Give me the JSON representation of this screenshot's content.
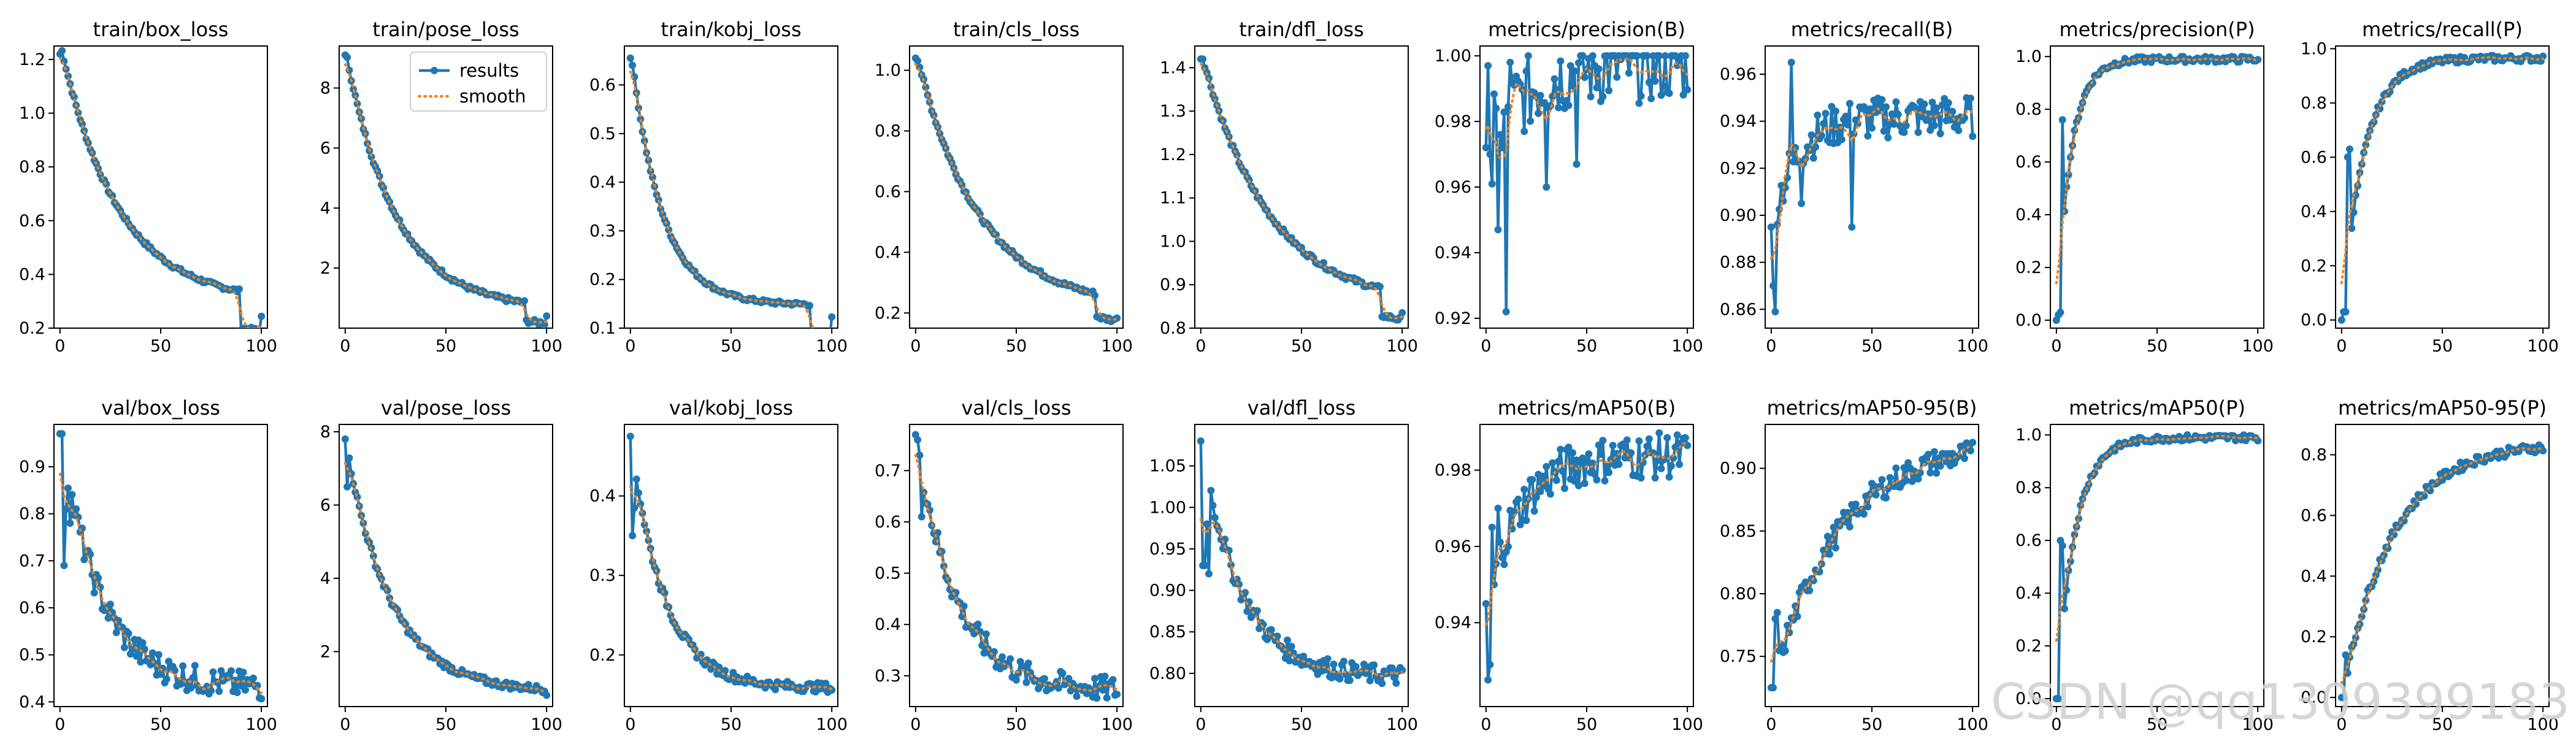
{
  "colors": {
    "results": "#1f77b4",
    "smooth": "#ff7f0e",
    "axis": "#000000"
  },
  "legend": {
    "entries": [
      "results",
      "smooth"
    ],
    "placement": "upper-right",
    "panel": 1
  },
  "watermark": "CSDN @qq1309399183",
  "chart_data": [
    {
      "type": "line",
      "title": "train/box_loss",
      "xlim": [
        -3,
        103
      ],
      "ylim": [
        0.2,
        1.25
      ],
      "xticks": [
        0,
        50,
        100
      ],
      "yticks": [
        0.2,
        0.4,
        0.6,
        0.8,
        1.0,
        1.2
      ],
      "xticklabels": [
        "0",
        "50",
        "100"
      ],
      "yticklabels": [
        "0.2",
        "0.4",
        "0.6",
        "0.8",
        "1.0",
        "1.2"
      ],
      "start": 1.22,
      "end": 0.25,
      "shape": "curve",
      "k": 3.5,
      "drop": 0.09,
      "noise": 0.008
    },
    {
      "type": "line",
      "title": "train/pose_loss",
      "xlim": [
        -3,
        103
      ],
      "ylim": [
        0,
        9.4
      ],
      "xticks": [
        0,
        50,
        100
      ],
      "yticks": [
        2,
        4,
        6,
        8
      ],
      "xticklabels": [
        "0",
        "50",
        "100"
      ],
      "yticklabels": [
        "2",
        "4",
        "6",
        "8"
      ],
      "start": 9.1,
      "end": 0.4,
      "shape": "curve",
      "k": 4.0,
      "drop": 0.4,
      "noise": 0.08
    },
    {
      "type": "line",
      "title": "train/kobj_loss",
      "xlim": [
        -3,
        103
      ],
      "ylim": [
        0.1,
        0.68
      ],
      "xticks": [
        0,
        50,
        100
      ],
      "yticks": [
        0.1,
        0.2,
        0.3,
        0.4,
        0.5,
        0.6
      ],
      "xticklabels": [
        "0",
        "50",
        "100"
      ],
      "yticklabels": [
        "0.1",
        "0.2",
        "0.3",
        "0.4",
        "0.5",
        "0.6"
      ],
      "start": 0.655,
      "end": 0.125,
      "shape": "curve",
      "k": 6.5,
      "drop": 0.045,
      "noise": 0.004
    },
    {
      "type": "line",
      "title": "train/cls_loss",
      "xlim": [
        -3,
        103
      ],
      "ylim": [
        0.15,
        1.08
      ],
      "xticks": [
        0,
        50,
        100
      ],
      "yticks": [
        0.2,
        0.4,
        0.6,
        0.8,
        1.0
      ],
      "xticklabels": [
        "0",
        "50",
        "100"
      ],
      "yticklabels": [
        "0.2",
        "0.4",
        "0.6",
        "0.8",
        "1.0"
      ],
      "start": 1.04,
      "end": 0.19,
      "shape": "curve",
      "k": 3.2,
      "drop": 0.05,
      "noise": 0.008
    },
    {
      "type": "line",
      "title": "train/dfl_loss",
      "xlim": [
        -3,
        103
      ],
      "ylim": [
        0.8,
        1.45
      ],
      "xticks": [
        0,
        50,
        100
      ],
      "yticks": [
        0.8,
        0.9,
        1.0,
        1.1,
        1.2,
        1.3,
        1.4
      ],
      "xticklabels": [
        "0",
        "50",
        "100"
      ],
      "yticklabels": [
        "0.8",
        "0.9",
        "1.0",
        "1.1",
        "1.2",
        "1.3",
        "1.4"
      ],
      "start": 1.42,
      "end": 0.83,
      "shape": "curve",
      "k": 3.0,
      "drop": 0.04,
      "noise": 0.006
    },
    {
      "type": "line",
      "title": "metrics/precision(B)",
      "xlim": [
        -3,
        103
      ],
      "ylim": [
        0.917,
        1.003
      ],
      "xticks": [
        0,
        50,
        100
      ],
      "yticks": [
        0.92,
        0.94,
        0.96,
        0.98,
        1.0
      ],
      "xticklabels": [
        "0",
        "50",
        "100"
      ],
      "yticklabels": [
        "0.92",
        "0.94",
        "0.96",
        "0.98",
        "1.00"
      ],
      "start": 0.972,
      "end": 0.998,
      "shape": "rise",
      "k": 5.0,
      "noise": 0.012,
      "cap": 1.0,
      "spikes": [
        [
          1,
          0.997
        ],
        [
          3,
          0.961
        ],
        [
          6,
          0.947
        ],
        [
          8,
          0.972
        ],
        [
          10,
          0.922
        ],
        [
          12,
          0.998
        ],
        [
          30,
          0.96
        ],
        [
          45,
          0.967
        ]
      ]
    },
    {
      "type": "line",
      "title": "metrics/recall(B)",
      "xlim": [
        -3,
        103
      ],
      "ylim": [
        0.852,
        0.972
      ],
      "xticks": [
        0,
        50,
        100
      ],
      "yticks": [
        0.86,
        0.88,
        0.9,
        0.92,
        0.94,
        0.96
      ],
      "xticklabels": [
        "0",
        "50",
        "100"
      ],
      "yticklabels": [
        "0.86",
        "0.88",
        "0.90",
        "0.92",
        "0.94",
        "0.96"
      ],
      "start": 0.895,
      "end": 0.942,
      "shape": "rise",
      "k": 8.0,
      "noise": 0.009,
      "spikes": [
        [
          1,
          0.87
        ],
        [
          2,
          0.859
        ],
        [
          10,
          0.965
        ],
        [
          15,
          0.905
        ],
        [
          40,
          0.895
        ]
      ]
    },
    {
      "type": "line",
      "title": "metrics/precision(P)",
      "xlim": [
        -3,
        103
      ],
      "ylim": [
        -0.03,
        1.04
      ],
      "xticks": [
        0,
        50,
        100
      ],
      "yticks": [
        0.0,
        0.2,
        0.4,
        0.6,
        0.8,
        1.0
      ],
      "xticklabels": [
        "0",
        "50",
        "100"
      ],
      "yticklabels": [
        "0.0",
        "0.2",
        "0.4",
        "0.6",
        "0.8",
        "1.0"
      ],
      "start": 0.0,
      "end": 0.99,
      "shape": "rise",
      "k": 14.0,
      "noise": 0.012,
      "cap": 1.0,
      "spikes": [
        [
          1,
          0.02
        ],
        [
          2,
          0.03
        ],
        [
          3,
          0.76
        ]
      ]
    },
    {
      "type": "line",
      "title": "metrics/recall(P)",
      "xlim": [
        -3,
        103
      ],
      "ylim": [
        -0.03,
        1.01
      ],
      "xticks": [
        0,
        50,
        100
      ],
      "yticks": [
        0.0,
        0.2,
        0.4,
        0.6,
        0.8,
        1.0
      ],
      "xticklabels": [
        "0",
        "50",
        "100"
      ],
      "yticklabels": [
        "0.0",
        "0.2",
        "0.4",
        "0.6",
        "0.8",
        "1.0"
      ],
      "start": 0.0,
      "end": 0.965,
      "shape": "rise",
      "k": 9.0,
      "noise": 0.012,
      "spikes": [
        [
          1,
          0.03
        ],
        [
          2,
          0.03
        ],
        [
          3,
          0.6
        ],
        [
          4,
          0.63
        ]
      ]
    },
    {
      "type": "line",
      "title": "val/box_loss",
      "xlim": [
        -3,
        103
      ],
      "ylim": [
        0.39,
        0.99
      ],
      "xticks": [
        0,
        50,
        100
      ],
      "yticks": [
        0.4,
        0.5,
        0.6,
        0.7,
        0.8,
        0.9
      ],
      "xticklabels": [
        "0",
        "50",
        "100"
      ],
      "yticklabels": [
        "0.4",
        "0.5",
        "0.6",
        "0.7",
        "0.8",
        "0.9"
      ],
      "start": 0.97,
      "end": 0.43,
      "shape": "curve",
      "k": 5.0,
      "noise": 0.03,
      "spikes": [
        [
          2,
          0.69
        ],
        [
          3,
          0.81
        ],
        [
          5,
          0.78
        ]
      ]
    },
    {
      "type": "line",
      "title": "val/pose_loss",
      "xlim": [
        -3,
        103
      ],
      "ylim": [
        0.5,
        8.2
      ],
      "xticks": [
        0,
        50,
        100
      ],
      "yticks": [
        2,
        4,
        6,
        8
      ],
      "xticklabels": [
        "0",
        "50",
        "100"
      ],
      "yticklabels": [
        "2",
        "4",
        "6",
        "8"
      ],
      "start": 7.8,
      "end": 0.9,
      "shape": "curve",
      "k": 4.5,
      "noise": 0.1,
      "spikes": [
        [
          1,
          6.5
        ]
      ]
    },
    {
      "type": "line",
      "title": "val/kobj_loss",
      "xlim": [
        -3,
        103
      ],
      "ylim": [
        0.135,
        0.49
      ],
      "xticks": [
        0,
        50,
        100
      ],
      "yticks": [
        0.2,
        0.3,
        0.4
      ],
      "xticklabels": [
        "0",
        "50",
        "100"
      ],
      "yticklabels": [
        "0.2",
        "0.3",
        "0.4"
      ],
      "start": 0.475,
      "end": 0.158,
      "shape": "curve",
      "k": 6.0,
      "noise": 0.006,
      "spikes": [
        [
          1,
          0.35
        ],
        [
          2,
          0.385
        ]
      ]
    },
    {
      "type": "line",
      "title": "val/cls_loss",
      "xlim": [
        -3,
        103
      ],
      "ylim": [
        0.24,
        0.79
      ],
      "xticks": [
        0,
        50,
        100
      ],
      "yticks": [
        0.3,
        0.4,
        0.5,
        0.6,
        0.7
      ],
      "xticklabels": [
        "0",
        "50",
        "100"
      ],
      "yticklabels": [
        "0.3",
        "0.4",
        "0.5",
        "0.6",
        "0.7"
      ],
      "start": 0.77,
      "end": 0.27,
      "shape": "curve",
      "k": 5.0,
      "noise": 0.025,
      "spikes": [
        [
          1,
          0.76
        ],
        [
          2,
          0.73
        ],
        [
          3,
          0.61
        ]
      ]
    },
    {
      "type": "line",
      "title": "val/dfl_loss",
      "xlim": [
        -3,
        103
      ],
      "ylim": [
        0.76,
        1.1
      ],
      "xticks": [
        0,
        50,
        100
      ],
      "yticks": [
        0.8,
        0.85,
        0.9,
        0.95,
        1.0,
        1.05
      ],
      "xticklabels": [
        "0",
        "50",
        "100"
      ],
      "yticklabels": [
        "0.80",
        "0.85",
        "0.90",
        "0.95",
        "1.00",
        "1.05"
      ],
      "start": 1.08,
      "end": 0.795,
      "shape": "curve",
      "k": 5.0,
      "noise": 0.012,
      "spikes": [
        [
          1,
          0.93
        ],
        [
          2,
          0.93
        ],
        [
          3,
          0.98
        ],
        [
          4,
          0.92
        ]
      ]
    },
    {
      "type": "line",
      "title": "metrics/mAP50(B)",
      "xlim": [
        -3,
        103
      ],
      "ylim": [
        0.918,
        0.992
      ],
      "xticks": [
        0,
        50,
        100
      ],
      "yticks": [
        0.94,
        0.96,
        0.98
      ],
      "xticklabels": [
        "0",
        "50",
        "100"
      ],
      "yticklabels": [
        "0.94",
        "0.96",
        "0.98"
      ],
      "start": 0.945,
      "end": 0.984,
      "shape": "rise",
      "k": 6.0,
      "noise": 0.006,
      "spikes": [
        [
          1,
          0.925
        ],
        [
          2,
          0.929
        ],
        [
          3,
          0.965
        ],
        [
          4,
          0.95
        ],
        [
          6,
          0.97
        ]
      ]
    },
    {
      "type": "line",
      "title": "metrics/mAP50-95(B)",
      "xlim": [
        -3,
        103
      ],
      "ylim": [
        0.71,
        0.935
      ],
      "xticks": [
        0,
        50,
        100
      ],
      "yticks": [
        0.75,
        0.8,
        0.85,
        0.9
      ],
      "xticklabels": [
        "0",
        "50",
        "100"
      ],
      "yticklabels": [
        "0.75",
        "0.80",
        "0.85",
        "0.90"
      ],
      "start": 0.725,
      "end": 0.922,
      "shape": "rise",
      "k": 3.0,
      "noise": 0.01,
      "spikes": [
        [
          1,
          0.725
        ],
        [
          2,
          0.78
        ],
        [
          3,
          0.785
        ]
      ]
    },
    {
      "type": "line",
      "title": "metrics/mAP50(P)",
      "xlim": [
        -3,
        103
      ],
      "ylim": [
        -0.03,
        1.04
      ],
      "xticks": [
        0,
        50,
        100
      ],
      "yticks": [
        0.0,
        0.2,
        0.4,
        0.6,
        0.8,
        1.0
      ],
      "xticklabels": [
        "0",
        "50",
        "100"
      ],
      "yticklabels": [
        "0.0",
        "0.2",
        "0.4",
        "0.6",
        "0.8",
        "1.0"
      ],
      "start": 0.0,
      "end": 0.99,
      "shape": "rise",
      "k": 11.0,
      "noise": 0.012,
      "spikes": [
        [
          1,
          0.0
        ],
        [
          2,
          0.6
        ],
        [
          3,
          0.58
        ]
      ]
    },
    {
      "type": "line",
      "title": "metrics/mAP50-95(P)",
      "xlim": [
        -3,
        103
      ],
      "ylim": [
        -0.03,
        0.9
      ],
      "xticks": [
        0,
        50,
        100
      ],
      "yticks": [
        0.0,
        0.2,
        0.4,
        0.6,
        0.8
      ],
      "xticklabels": [
        "0",
        "50",
        "100"
      ],
      "yticklabels": [
        "0.0",
        "0.2",
        "0.4",
        "0.6",
        "0.8"
      ],
      "start": 0.0,
      "end": 0.84,
      "shape": "rise",
      "k": 4.0,
      "noise": 0.015,
      "spikes": [
        [
          1,
          0.0
        ],
        [
          2,
          0.14
        ]
      ]
    }
  ]
}
